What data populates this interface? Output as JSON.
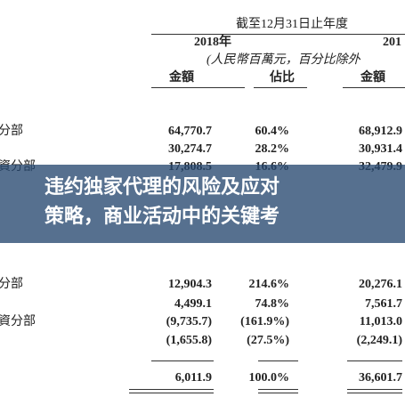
{
  "header": {
    "period": "截至12月31日止年度",
    "year": "2018年",
    "year_cut": "201",
    "unit": "(人民幣百萬元，百分比除外"
  },
  "columns": [
    "金額",
    "佔比",
    "金額"
  ],
  "sections": [
    {
      "rows": [
        [
          "分部",
          "64,770.7",
          "60.4%",
          "68,912.9"
        ],
        [
          "",
          "30,274.7",
          "28.2%",
          "30,931.4"
        ],
        [
          "資分部",
          "17,808.5",
          "16.6%",
          "32,479.9"
        ]
      ]
    },
    {
      "rows": [
        [
          "分部",
          "12,904.3",
          "214.6%",
          "20,276.1"
        ],
        [
          "",
          "4,499.1",
          "74.8%",
          "7,561.7"
        ],
        [
          "資分部",
          "(9,735.7)",
          "(161.9%)",
          "11,013.0"
        ],
        [
          "",
          "(1,655.8)",
          "(27.5%)",
          "(2,249.1)"
        ],
        [
          "",
          "6,011.9",
          "100.0%",
          "36,601.7"
        ]
      ]
    }
  ],
  "overlay": {
    "lines": [
      "违约独家代理的风险及应对",
      "策略，商业活动中的关键考"
    ]
  }
}
